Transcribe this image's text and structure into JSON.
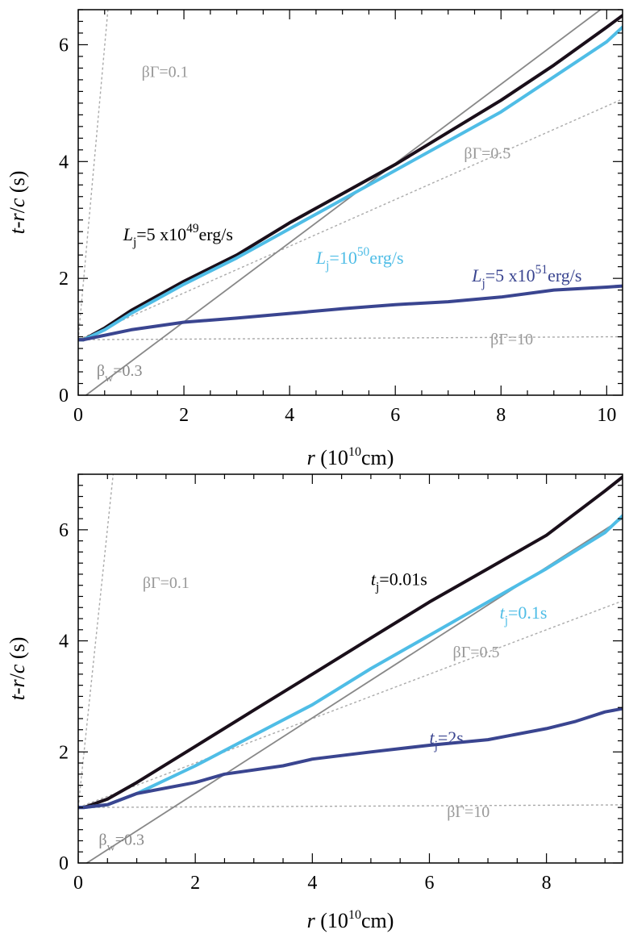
{
  "chart_data": [
    {
      "type": "line",
      "panel": "top",
      "xlabel_main": "r",
      "xlabel_open": "(10",
      "xlabel_exp": "10",
      "xlabel_unit": "cm)",
      "ylabel_parts": [
        "t",
        "-",
        "r",
        "/",
        "c",
        " (s)"
      ],
      "xlim": [
        0,
        10.3
      ],
      "ylim": [
        0,
        6.6
      ],
      "xticks": [
        0,
        2,
        4,
        6,
        8,
        10
      ],
      "yticks": [
        0,
        2,
        4,
        6
      ],
      "series": [
        {
          "name": "L_j=5x10^49 erg/s",
          "color": "#1a0f1a",
          "x": [
            0,
            0.1,
            0.5,
            1,
            2,
            3,
            4,
            5,
            6,
            7,
            8,
            9,
            10,
            10.3
          ],
          "y": [
            0.95,
            0.95,
            1.15,
            1.45,
            1.95,
            2.4,
            2.95,
            3.45,
            3.95,
            4.5,
            5.05,
            5.65,
            6.3,
            6.5
          ]
        },
        {
          "name": "L_j=10^50 erg/s",
          "color": "#4fbde6",
          "x": [
            0,
            0.1,
            0.5,
            1,
            2,
            3,
            4,
            5,
            6,
            7,
            8,
            9,
            10,
            10.3
          ],
          "y": [
            0.95,
            0.95,
            1.12,
            1.4,
            1.9,
            2.35,
            2.85,
            3.35,
            3.85,
            4.35,
            4.85,
            5.45,
            6.05,
            6.3
          ]
        },
        {
          "name": "L_j=5x10^51 erg/s",
          "color": "#3a4590",
          "x": [
            0,
            0.1,
            1,
            2,
            3,
            4,
            5,
            6,
            7,
            8,
            9,
            10,
            10.3
          ],
          "y": [
            0.95,
            0.95,
            1.12,
            1.25,
            1.32,
            1.4,
            1.48,
            1.55,
            1.6,
            1.68,
            1.8,
            1.85,
            1.87
          ]
        }
      ],
      "reference_lines": [
        {
          "name": "betaGamma=0.1",
          "style": "dotted",
          "color": "#aaaaaa",
          "slope": 10.05,
          "intercept": 0.95
        },
        {
          "name": "betaGamma=0.5",
          "style": "dotted",
          "color": "#aaaaaa",
          "slope": 0.4,
          "intercept": 0.95
        },
        {
          "name": "betaGamma=10",
          "style": "dotted",
          "color": "#aaaaaa",
          "slope": 0.005,
          "intercept": 0.95
        },
        {
          "name": "beta_w=0.3",
          "style": "solid",
          "color": "#888888",
          "slope": 0.678,
          "intercept": -0.1
        }
      ],
      "annotations": {
        "bg01": {
          "pre": "βΓ=0.1"
        },
        "bg05": {
          "pre": "βΓ=0.5"
        },
        "bg10": {
          "pre": "βΓ=10"
        },
        "bw": {
          "pre": "β",
          "sub": "w",
          "post": "=0.3"
        },
        "l1": {
          "pre": "L",
          "sub": "j",
          "mid": "=5 x10",
          "sup": "49",
          "post": "erg/s"
        },
        "l2": {
          "pre": "L",
          "sub": "j",
          "mid": "=10",
          "sup": "50",
          "post": "erg/s"
        },
        "l3": {
          "pre": "L",
          "sub": "j",
          "mid": "=5 x10",
          "sup": "51",
          "post": "erg/s"
        }
      }
    },
    {
      "type": "line",
      "panel": "bottom",
      "xlabel_main": "r",
      "xlabel_open": "(10",
      "xlabel_exp": "10",
      "xlabel_unit": "cm)",
      "ylabel_parts": [
        "t",
        "-",
        "r",
        "/",
        "c",
        " (s)"
      ],
      "xlim": [
        0,
        9.3
      ],
      "ylim": [
        0,
        7.0
      ],
      "xticks": [
        0,
        2,
        4,
        6,
        8
      ],
      "yticks": [
        0,
        2,
        4,
        6
      ],
      "series": [
        {
          "name": "t_j=0.01s",
          "color": "#1a0f1a",
          "x": [
            0,
            0.1,
            0.5,
            1,
            2,
            3,
            4,
            5,
            6,
            7,
            8,
            8.5,
            9,
            9.3
          ],
          "y": [
            1.0,
            1.0,
            1.15,
            1.45,
            2.1,
            2.75,
            3.4,
            4.05,
            4.7,
            5.3,
            5.9,
            6.3,
            6.7,
            6.95
          ]
        },
        {
          "name": "t_j=0.1s",
          "color": "#4fbde6",
          "x": [
            0,
            0.1,
            0.5,
            1,
            2,
            3,
            4,
            5,
            6,
            7,
            8,
            9,
            9.3
          ],
          "y": [
            1.0,
            1.0,
            1.05,
            1.25,
            1.75,
            2.3,
            2.85,
            3.5,
            4.1,
            4.7,
            5.3,
            5.95,
            6.25
          ]
        },
        {
          "name": "t_j=2s",
          "color": "#3a4590",
          "x": [
            0,
            0.1,
            0.5,
            1,
            2,
            2.5,
            3.5,
            4,
            5,
            6,
            7,
            8,
            8.5,
            9,
            9.3
          ],
          "y": [
            1.0,
            1.0,
            1.05,
            1.25,
            1.45,
            1.6,
            1.75,
            1.87,
            2.0,
            2.12,
            2.22,
            2.42,
            2.55,
            2.72,
            2.78
          ]
        }
      ],
      "reference_lines": [
        {
          "name": "betaGamma=0.1",
          "style": "dotted",
          "color": "#aaaaaa",
          "slope": 10.05,
          "intercept": 1.0
        },
        {
          "name": "betaGamma=0.5",
          "style": "dotted",
          "color": "#aaaaaa",
          "slope": 0.4,
          "intercept": 1.0
        },
        {
          "name": "betaGamma=10",
          "style": "dotted",
          "color": "#aaaaaa",
          "slope": 0.005,
          "intercept": 1.0
        },
        {
          "name": "beta_w=0.3",
          "style": "solid",
          "color": "#888888",
          "slope": 0.678,
          "intercept": -0.1
        }
      ],
      "annotations": {
        "bg01": {
          "pre": "βΓ=0.1"
        },
        "bg05": {
          "pre": "βΓ=0.5"
        },
        "bg10": {
          "pre": "βΓ=10"
        },
        "bw": {
          "pre": "β",
          "sub": "w",
          "post": "=0.3"
        },
        "l1": {
          "pre": "t",
          "sub": "j",
          "post": "=0.01s"
        },
        "l2": {
          "pre": "t",
          "sub": "j",
          "post": "=0.1s"
        },
        "l3": {
          "pre": "t",
          "sub": "j",
          "post": "=2s"
        }
      }
    }
  ]
}
